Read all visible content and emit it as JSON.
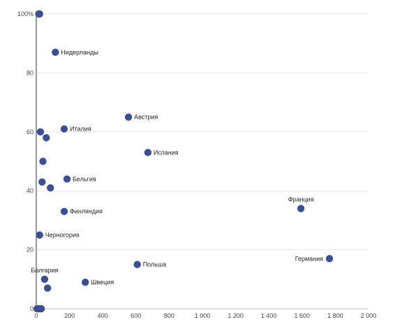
{
  "chart_data": {
    "type": "scatter",
    "xlim": [
      0,
      2000
    ],
    "ylim": [
      0,
      100
    ],
    "x_ticks": [
      0,
      200,
      400,
      600,
      800,
      1000,
      1200,
      1400,
      1600,
      1800,
      2000
    ],
    "x_tick_labels": [
      "0",
      "200",
      "400",
      "600",
      "800",
      "1 000",
      "1 200",
      "1 400",
      "1 600",
      "1 800",
      "2 000"
    ],
    "y_ticks": [
      0,
      20,
      40,
      60,
      80,
      100
    ],
    "y_tick_labels": [
      "0",
      "20",
      "40",
      "60",
      "80",
      "100%"
    ],
    "grid": "horizontal",
    "color": "#3d4f91",
    "points": [
      {
        "x": 15,
        "y": 100,
        "label": ""
      },
      {
        "x": 20,
        "y": 100,
        "label": ""
      },
      {
        "x": 115,
        "y": 87,
        "label": "Нидерланды"
      },
      {
        "x": 555,
        "y": 65,
        "label": "Австрия"
      },
      {
        "x": 25,
        "y": 60,
        "label": ""
      },
      {
        "x": 168,
        "y": 61,
        "label": "Италия"
      },
      {
        "x": 60,
        "y": 58,
        "label": ""
      },
      {
        "x": 672,
        "y": 53,
        "label": "Испания"
      },
      {
        "x": 40,
        "y": 50,
        "label": ""
      },
      {
        "x": 185,
        "y": 44,
        "label": "Бельгия"
      },
      {
        "x": 35,
        "y": 43,
        "label": ""
      },
      {
        "x": 85,
        "y": 41,
        "label": ""
      },
      {
        "x": 1593,
        "y": 34,
        "label": "Франция"
      },
      {
        "x": 168,
        "y": 33,
        "label": "Финляндия"
      },
      {
        "x": 20,
        "y": 25,
        "label": "Черногория"
      },
      {
        "x": 1765,
        "y": 17,
        "label": "Германия"
      },
      {
        "x": 608,
        "y": 15,
        "label": "Польша"
      },
      {
        "x": 50,
        "y": 10,
        "label": "Болгария"
      },
      {
        "x": 295,
        "y": 9,
        "label": "Швеция"
      },
      {
        "x": 68,
        "y": 7,
        "label": ""
      },
      {
        "x": 5,
        "y": 0,
        "label": ""
      },
      {
        "x": 15,
        "y": 0,
        "label": ""
      },
      {
        "x": 30,
        "y": 0,
        "label": ""
      }
    ]
  }
}
